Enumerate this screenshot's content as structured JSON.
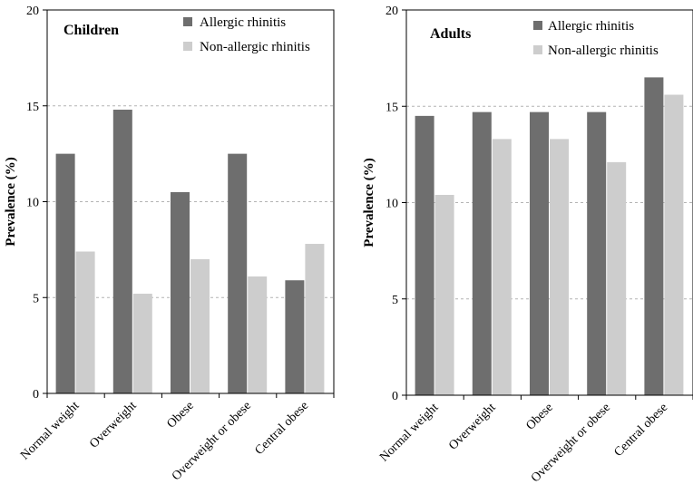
{
  "chart_data": [
    {
      "type": "bar",
      "title": "Children",
      "xlabel": "",
      "ylabel": "Prevalence (%)",
      "ylim": [
        0,
        20
      ],
      "yticks": [
        0,
        5,
        10,
        15,
        20
      ],
      "grid": true,
      "legend_position": "top-right",
      "categories": [
        "Normal weight",
        "Overweight",
        "Obese",
        "Overweight or obese",
        "Central obese"
      ],
      "series": [
        {
          "name": "Allergic rhinitis",
          "color": "#6e6e6e",
          "values": [
            12.5,
            14.8,
            10.5,
            12.5,
            5.9
          ]
        },
        {
          "name": "Non-allergic rhinitis",
          "color": "#cdcdcd",
          "values": [
            7.4,
            5.2,
            7.0,
            6.1,
            7.8
          ]
        }
      ]
    },
    {
      "type": "bar",
      "title": "Adults",
      "xlabel": "",
      "ylabel": "Prevalence (%)",
      "ylim": [
        0,
        20
      ],
      "yticks": [
        0,
        5,
        10,
        15,
        20
      ],
      "grid": true,
      "legend_position": "top-right",
      "categories": [
        "Normal weight",
        "Overweight",
        "Obese",
        "Overweight or obese",
        "Central obese"
      ],
      "series": [
        {
          "name": "Allergic rhinitis",
          "color": "#6e6e6e",
          "values": [
            14.5,
            14.7,
            14.7,
            14.7,
            16.5
          ]
        },
        {
          "name": "Non-allergic rhinitis",
          "color": "#cdcdcd",
          "values": [
            10.4,
            13.3,
            13.3,
            12.1,
            15.6
          ]
        }
      ]
    }
  ]
}
